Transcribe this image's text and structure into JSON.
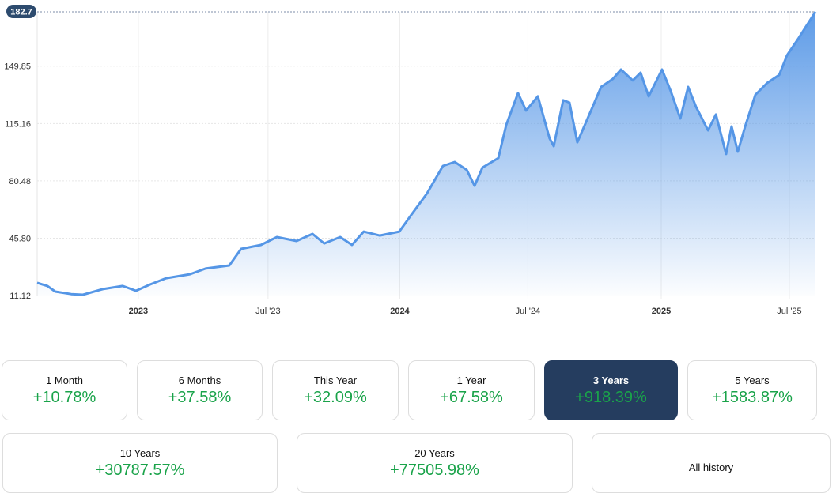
{
  "chart_data": {
    "type": "area",
    "title": "",
    "xlabel": "",
    "ylabel": "",
    "ylim": [
      11.12,
      182.7
    ],
    "xlim": [
      2022.613,
      2025.59
    ],
    "y_ticks": [
      "11.12",
      "45.80",
      "80.48",
      "115.16",
      "149.85"
    ],
    "y_tick_values": [
      11.12,
      45.8,
      80.48,
      115.16,
      149.85
    ],
    "current_value_label": "182.7",
    "x_ticks": [
      {
        "label": "2023",
        "t": 2023.0,
        "bold": true
      },
      {
        "label": "Jul '23",
        "t": 2023.496,
        "bold": false
      },
      {
        "label": "2024",
        "t": 2024.0,
        "bold": true
      },
      {
        "label": "Jul '24",
        "t": 2024.49,
        "bold": false
      },
      {
        "label": "2025",
        "t": 2025.0,
        "bold": true
      },
      {
        "label": "Jul '25",
        "t": 2025.49,
        "bold": false
      }
    ],
    "grid": true,
    "line_color": "#5596e6",
    "x": [
      2022.613,
      2022.652,
      2022.682,
      2022.743,
      2022.788,
      2022.864,
      2022.94,
      2022.991,
      2023.045,
      2023.106,
      2023.197,
      2023.257,
      2023.348,
      2023.393,
      2023.469,
      2023.53,
      2023.605,
      2023.666,
      2023.711,
      2023.772,
      2023.817,
      2023.862,
      2023.923,
      2023.998,
      2024.044,
      2024.104,
      2024.165,
      2024.21,
      2024.256,
      2024.286,
      2024.316,
      2024.377,
      2024.407,
      2024.452,
      2024.483,
      2024.528,
      2024.573,
      2024.589,
      2024.625,
      2024.649,
      2024.679,
      2024.725,
      2024.77,
      2024.815,
      2024.846,
      2024.891,
      2024.921,
      2024.952,
      2025.003,
      2025.036,
      2025.073,
      2025.103,
      2025.133,
      2025.179,
      2025.209,
      2025.248,
      2025.269,
      2025.293,
      2025.321,
      2025.36,
      2025.405,
      2025.451,
      2025.481,
      2025.526,
      2025.557,
      2025.59
    ],
    "values": [
      18.8,
      16.9,
      13.5,
      12.0,
      11.6,
      15.0,
      16.9,
      14.0,
      17.8,
      21.6,
      24.0,
      27.4,
      29.3,
      39.3,
      41.7,
      46.5,
      44.1,
      48.4,
      42.6,
      46.5,
      41.7,
      49.8,
      47.4,
      49.8,
      59.9,
      72.8,
      89.5,
      91.9,
      87.1,
      77.5,
      88.5,
      94.3,
      114.3,
      133.5,
      123.0,
      131.6,
      106.2,
      101.4,
      129.2,
      127.8,
      103.8,
      120.6,
      137.3,
      142.1,
      147.8,
      141.2,
      145.9,
      131.6,
      147.8,
      134.9,
      118.2,
      137.3,
      125.3,
      111.0,
      120.6,
      96.7,
      113.4,
      98.1,
      113.4,
      132.5,
      139.7,
      144.5,
      156.4,
      166.9,
      174.6,
      182.7
    ]
  },
  "periods": [
    {
      "label": "1 Month",
      "value": "+10.78%"
    },
    {
      "label": "6 Months",
      "value": "+37.58%"
    },
    {
      "label": "This Year",
      "value": "+32.09%"
    },
    {
      "label": "1 Year",
      "value": "+67.58%"
    },
    {
      "label": "3 Years",
      "value": "+918.39%"
    },
    {
      "label": "5 Years",
      "value": "+1583.87%"
    },
    {
      "label": "10 Years",
      "value": "+30787.57%"
    },
    {
      "label": "20 Years",
      "value": "+77505.98%"
    },
    {
      "label": "All history"
    }
  ],
  "selected_period": "3 Years"
}
